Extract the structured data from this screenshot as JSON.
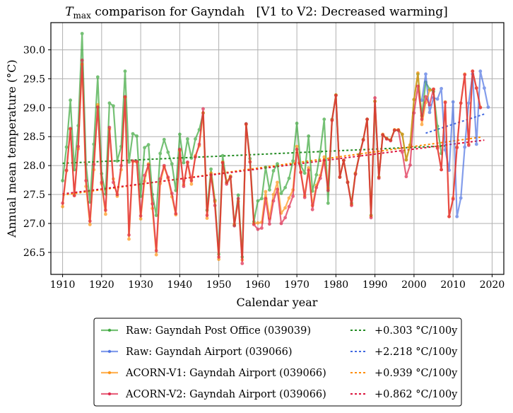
{
  "chart_data": {
    "type": "line",
    "title": {
      "symbol": "T",
      "subscript": "max",
      "text": " comparison for Gayndah   [V1 to V2: Decreased warming]"
    },
    "xlabel": "Calendar year",
    "ylabel": "Annual mean temperature (°C)",
    "xlim": [
      1907,
      2023
    ],
    "ylim": [
      26.12,
      30.47
    ],
    "xticks": [
      1910,
      1920,
      1930,
      1940,
      1950,
      1960,
      1970,
      1980,
      1990,
      2000,
      2010,
      2020
    ],
    "yticks": [
      26.5,
      27.0,
      27.5,
      28.0,
      28.5,
      29.0,
      29.5,
      30.0
    ],
    "ytick_labels": [
      "26.5",
      "27.0",
      "27.5",
      "28.0",
      "28.5",
      "29.0",
      "29.5",
      "30.0"
    ],
    "grid": true,
    "legend_position": "below",
    "series": [
      {
        "name": "Raw: Gayndah Post Office (039039)",
        "color": "#2ca02c",
        "start_year": 1910,
        "values": [
          27.74,
          28.32,
          29.13,
          27.93,
          28.69,
          30.28,
          28.02,
          27.37,
          28.37,
          29.53,
          27.86,
          27.51,
          29.08,
          29.03,
          28.08,
          28.33,
          29.63,
          28.06,
          28.55,
          28.51,
          27.47,
          28.31,
          28.36,
          27.5,
          27.14,
          28.21,
          28.45,
          28.23,
          28.03,
          27.57,
          28.54,
          28.05,
          28.46,
          28.13,
          28.46,
          28.62,
          28.91,
          27.23,
          27.94,
          27.4,
          26.47,
          28.17,
          27.71,
          27.81,
          26.97,
          27.49,
          26.42,
          28.72,
          28.12,
          27.03,
          27.39,
          27.43,
          27.97,
          27.58,
          27.91,
          28.03,
          27.52,
          27.62,
          27.78,
          28.08,
          28.73,
          28.0,
          27.87,
          28.51,
          27.56,
          27.84,
          28.24,
          28.8,
          27.35,
          28.8,
          29.22,
          27.8,
          28.09,
          27.71,
          27.35,
          27.86,
          28.19,
          28.45,
          28.8,
          27.14,
          29.11,
          27.8,
          28.53,
          28.47,
          28.44,
          28.61,
          28.61,
          28.54,
          28.1,
          28.35,
          29.14,
          29.58,
          28.86,
          29.44,
          29.32,
          29.28,
          28.68,
          28.21
        ]
      },
      {
        "name": "Raw: Gayndah Airport (039066)",
        "color": "#4169e1",
        "start_year": 2002,
        "values": [
          29.13,
          29.58,
          28.92,
          29.17,
          29.15,
          29.33,
          28.27,
          27.92,
          29.1,
          27.12,
          27.44,
          28.32,
          29.08,
          29.58,
          28.37,
          29.63,
          29.34,
          29.01
        ]
      },
      {
        "name": "ACORN-V1: Gayndah Airport (039066)",
        "color": "#ff8c00",
        "start_year": 1910,
        "values": [
          27.29,
          27.91,
          28.63,
          27.49,
          28.29,
          29.75,
          27.64,
          26.98,
          27.93,
          29.05,
          27.68,
          27.16,
          28.63,
          27.77,
          27.47,
          27.93,
          29.18,
          26.73,
          28.07,
          28.06,
          27.08,
          27.73,
          28.03,
          27.26,
          26.46,
          27.69,
          27.98,
          27.78,
          27.46,
          27.15,
          28.26,
          27.67,
          28.05,
          27.68,
          28.17,
          28.34,
          28.91,
          27.09,
          27.87,
          27.38,
          26.38,
          28.06,
          27.71,
          27.82,
          26.99,
          27.38,
          26.37,
          28.71,
          28.07,
          27.0,
          27.01,
          27.02,
          27.55,
          27.09,
          27.5,
          27.71,
          27.18,
          27.27,
          27.44,
          27.58,
          28.33,
          27.89,
          27.48,
          27.96,
          27.31,
          27.66,
          27.83,
          28.15,
          27.61,
          28.79,
          29.22,
          27.8,
          28.09,
          27.72,
          27.33,
          27.87,
          28.17,
          28.45,
          28.8,
          27.13,
          29.11,
          27.8,
          28.54,
          28.47,
          28.44,
          28.62,
          28.62,
          28.54,
          28.1,
          28.36,
          29.14,
          29.6,
          28.71,
          29.09,
          29.3,
          29.32,
          28.32,
          27.93,
          29.1,
          27.12,
          27.44,
          28.32,
          29.08,
          29.58,
          28.37,
          29.63,
          29.34,
          29.01
        ]
      },
      {
        "name": "ACORN-V2: Gayndah Airport (039066)",
        "color": "#dc143c",
        "start_year": 1910,
        "values": [
          27.35,
          27.92,
          28.64,
          27.48,
          28.33,
          29.82,
          27.74,
          27.04,
          28.02,
          29.01,
          27.71,
          27.23,
          28.66,
          27.71,
          27.5,
          28.0,
          29.19,
          26.8,
          28.08,
          28.07,
          27.13,
          27.83,
          28.01,
          27.34,
          26.53,
          27.77,
          28.0,
          27.8,
          27.52,
          27.17,
          28.28,
          27.64,
          28.06,
          27.74,
          28.15,
          28.37,
          28.98,
          27.14,
          27.84,
          27.31,
          26.42,
          28.05,
          27.68,
          27.8,
          26.96,
          27.43,
          26.31,
          28.72,
          28.06,
          26.98,
          26.9,
          26.92,
          27.43,
          26.99,
          27.39,
          27.59,
          27.0,
          27.1,
          27.29,
          27.47,
          28.28,
          27.88,
          27.45,
          27.92,
          27.24,
          27.62,
          27.78,
          28.09,
          27.57,
          28.78,
          29.21,
          27.8,
          28.09,
          27.71,
          27.31,
          27.85,
          28.17,
          28.44,
          28.8,
          27.1,
          29.17,
          27.78,
          28.53,
          28.46,
          28.43,
          28.61,
          28.61,
          28.23,
          27.81,
          28.01,
          28.91,
          29.37,
          28.8,
          29.19,
          29.05,
          29.32,
          28.3,
          27.93,
          29.09,
          27.12,
          27.42,
          28.31,
          29.08,
          29.57,
          28.35,
          29.63,
          29.34,
          29.0
        ]
      }
    ],
    "trends": [
      {
        "label": "+0.303 °C/100y",
        "color": "#228b22",
        "x": [
          1910,
          2008
        ],
        "y": [
          28.04,
          28.34
        ]
      },
      {
        "label": "+2.218 °C/100y",
        "color": "#4169e1",
        "x": [
          2003,
          2018
        ],
        "y": [
          28.56,
          28.89
        ]
      },
      {
        "label": "+0.939 °C/100y",
        "color": "#ff8c00",
        "x": [
          1910,
          2017
        ],
        "y": [
          27.49,
          28.49
        ]
      },
      {
        "label": "+0.862 °C/100y",
        "color": "#dc143c",
        "x": [
          1910,
          2018
        ],
        "y": [
          27.51,
          28.44
        ]
      }
    ]
  },
  "legend": {
    "entries": [
      {
        "label": "Raw: Gayndah Post Office (039039)",
        "trend": "+0.303 °C/100y"
      },
      {
        "label": "Raw: Gayndah Airport (039066)",
        "trend": "+2.218 °C/100y"
      },
      {
        "label": "ACORN-V1: Gayndah Airport (039066)",
        "trend": "+0.939 °C/100y"
      },
      {
        "label": "ACORN-V2: Gayndah Airport (039066)",
        "trend": "+0.862 °C/100y"
      }
    ]
  }
}
